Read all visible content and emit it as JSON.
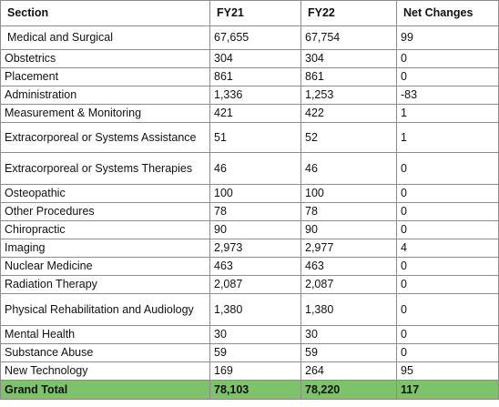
{
  "table": {
    "headers": [
      "Section",
      "FY21",
      "FY22",
      "Net Changes"
    ],
    "rows": [
      [
        "Medical and Surgical",
        "67,655",
        "67,754",
        "99"
      ],
      [
        "Obstetrics",
        "304",
        "304",
        "0"
      ],
      [
        "Placement",
        "861",
        "861",
        "0"
      ],
      [
        "Administration",
        "1,336",
        "1,253",
        "-83"
      ],
      [
        "Measurement & Monitoring",
        "421",
        "422",
        "1"
      ],
      [
        "Extracorporeal or Systems Assistance",
        "51",
        "52",
        "1"
      ],
      [
        "Extracorporeal or Systems Therapies",
        "46",
        "46",
        "0"
      ],
      [
        "Osteopathic",
        "100",
        "100",
        "0"
      ],
      [
        "Other Procedures",
        "78",
        "78",
        "0"
      ],
      [
        "Chiropractic",
        "90",
        "90",
        "0"
      ],
      [
        "Imaging",
        "2,973",
        "2,977",
        "4"
      ],
      [
        "Nuclear Medicine",
        "463",
        "463",
        "0"
      ],
      [
        "Radiation Therapy",
        "2,087",
        "2,087",
        "0"
      ],
      [
        "Physical Rehabilitation and Audiology",
        "1,380",
        "1,380",
        "0"
      ],
      [
        "Mental Health",
        "30",
        "30",
        "0"
      ],
      [
        "Substance Abuse",
        "59",
        "59",
        "0"
      ],
      [
        "New Technology",
        "169",
        "264",
        "95"
      ]
    ],
    "total": [
      "Grand Total",
      "78,103",
      "78,220",
      "117"
    ]
  },
  "colors": {
    "total_row_background": "#7ec36b",
    "border": "#8c8c8c"
  }
}
